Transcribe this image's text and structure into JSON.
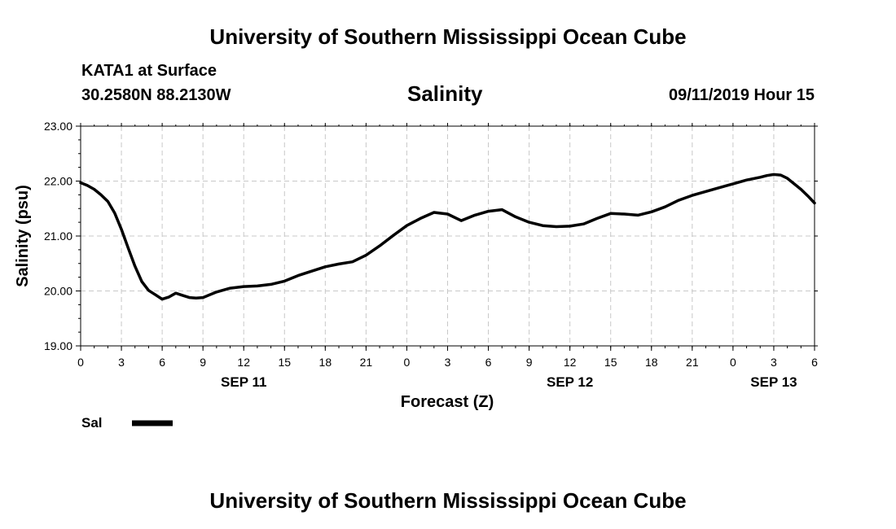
{
  "header": {
    "title": "University of Southern Mississippi Ocean Cube",
    "station_label": "KATA1 at Surface",
    "coordinates": "30.2580N 88.2130W",
    "plot_title": "Salinity",
    "timestamp": "09/11/2019 Hour 15"
  },
  "footer": {
    "title": "University of Southern Mississippi Ocean Cube"
  },
  "legend": {
    "label": "Sal",
    "color": "#000000"
  },
  "chart_data": {
    "type": "line",
    "title": "Salinity",
    "xlabel": "Forecast (Z)",
    "ylabel": "Salinity (psu)",
    "ylim": [
      19,
      23
    ],
    "xlim": [
      0,
      54
    ],
    "grid": true,
    "y_ticks": [
      "19.00",
      "20.00",
      "21.00",
      "22.00",
      "23.00"
    ],
    "x_tick_hours": [
      0,
      3,
      6,
      9,
      12,
      15,
      18,
      21,
      24,
      27,
      30,
      33,
      36,
      39,
      42,
      45,
      48,
      51,
      54
    ],
    "x_tick_labels": [
      "0",
      "3",
      "6",
      "9",
      "12",
      "15",
      "18",
      "21",
      "0",
      "3",
      "6",
      "9",
      "12",
      "15",
      "18",
      "21",
      "0",
      "3",
      "6"
    ],
    "date_labels": [
      {
        "hour": 12,
        "label": "SEP 11"
      },
      {
        "hour": 36,
        "label": "SEP 12"
      },
      {
        "hour": 51,
        "label": "SEP 13"
      }
    ],
    "series": [
      {
        "name": "Sal",
        "x": [
          0,
          0.5,
          1,
          1.5,
          2,
          2.5,
          3,
          3.5,
          4,
          4.5,
          5,
          5.5,
          6,
          6.5,
          7,
          7.5,
          8,
          8.5,
          9,
          10,
          11,
          12,
          13,
          14,
          15,
          16,
          17,
          18,
          19,
          20,
          21,
          22,
          23,
          24,
          25,
          26,
          27,
          28,
          29,
          30,
          31,
          32,
          33,
          34,
          35,
          36,
          37,
          38,
          39,
          40,
          41,
          42,
          43,
          44,
          45,
          46,
          47,
          48,
          49,
          50,
          50.5,
          51,
          51.5,
          52,
          52.5,
          53,
          53.5,
          54
        ],
        "values": [
          21.97,
          21.92,
          21.85,
          21.75,
          21.63,
          21.42,
          21.12,
          20.78,
          20.45,
          20.17,
          20.01,
          19.93,
          19.85,
          19.89,
          19.96,
          19.92,
          19.88,
          19.87,
          19.88,
          19.98,
          20.05,
          20.08,
          20.09,
          20.12,
          20.18,
          20.28,
          20.36,
          20.44,
          20.49,
          20.53,
          20.65,
          20.82,
          21.01,
          21.19,
          21.32,
          21.43,
          21.4,
          21.28,
          21.38,
          21.45,
          21.48,
          21.35,
          21.25,
          21.19,
          21.17,
          21.18,
          21.22,
          21.32,
          21.41,
          21.4,
          21.38,
          21.44,
          21.53,
          21.65,
          21.74,
          21.81,
          21.88,
          21.95,
          22.02,
          22.07,
          22.1,
          22.12,
          22.11,
          22.05,
          21.95,
          21.85,
          21.73,
          21.6
        ]
      }
    ]
  }
}
